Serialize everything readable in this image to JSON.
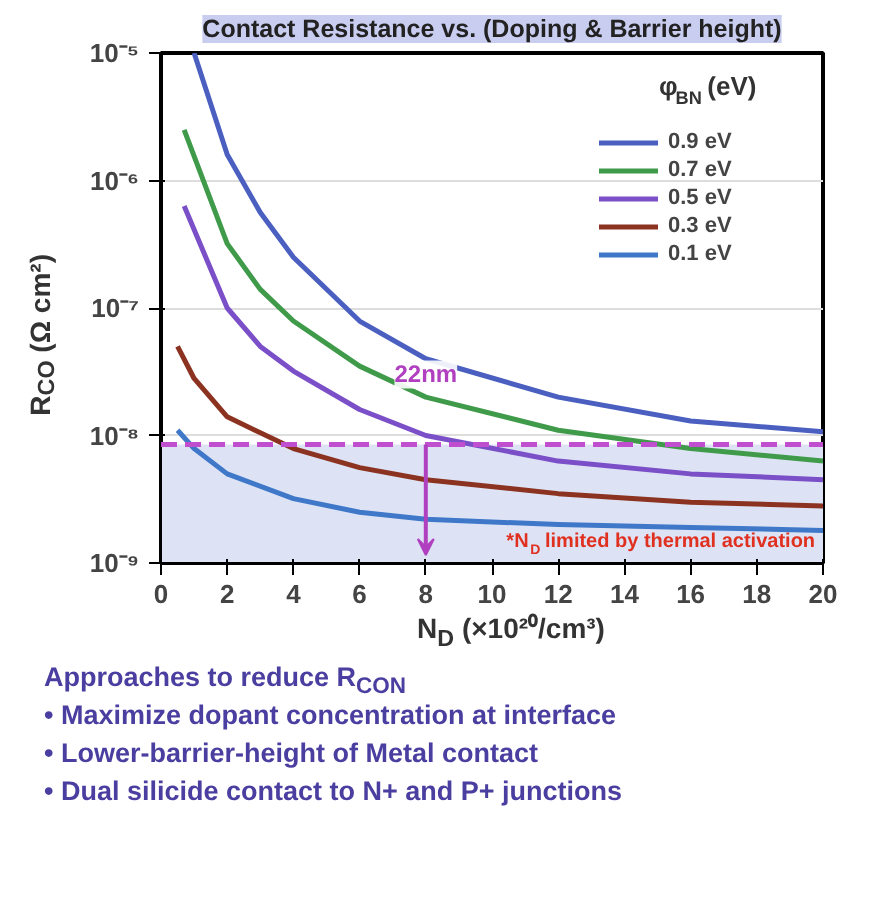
{
  "chart_data": {
    "type": "line",
    "title": "Contact Resistance vs. (Doping & Barrier height)",
    "xlabel": "N$_{D}$ (×10²⁰/cm³)",
    "ylabel": "R$_{CO}$ (Ω cm²)",
    "legend_title": "φ$_{BN}$ (eV)",
    "log": "y",
    "xlim": [
      0,
      20
    ],
    "xticks": [
      0,
      2,
      4,
      6,
      8,
      10,
      12,
      14,
      16,
      18,
      20
    ],
    "ylim": [
      1e-09,
      1e-05
    ],
    "yticks": [
      {
        "value": 1e-09,
        "label": "10⁻⁹"
      },
      {
        "value": 1e-08,
        "label": "10⁻⁸"
      },
      {
        "value": 1e-07,
        "label": "10⁻⁷"
      },
      {
        "value": 1e-06,
        "label": "10⁻⁶"
      },
      {
        "value": 1e-05,
        "label": "10⁻⁵"
      }
    ],
    "grid": "y",
    "legend": "top right",
    "line_style": "solid",
    "marker": "none",
    "series": [
      {
        "name": "0.9 eV",
        "color": "#4a5fc0",
        "x": [
          1,
          2,
          3,
          4,
          6,
          8,
          12,
          16,
          20
        ],
        "values": [
          1e-05,
          1.6e-06,
          5.6e-07,
          2.5e-07,
          7.9e-08,
          4e-08,
          2e-08,
          1.3e-08,
          1.07e-08
        ]
      },
      {
        "name": "0.7 eV",
        "color": "#3f9a4a",
        "x": [
          0.7,
          2,
          3,
          4,
          6,
          8,
          12,
          16,
          20
        ],
        "values": [
          2.5e-06,
          3.2e-07,
          1.4e-07,
          7.9e-08,
          3.5e-08,
          2e-08,
          1.1e-08,
          7.9e-09,
          6.3e-09
        ]
      },
      {
        "name": "0.5 eV",
        "color": "#7a4fc8",
        "x": [
          0.7,
          2,
          3,
          4,
          6,
          8,
          12,
          16,
          20
        ],
        "values": [
          6.3e-07,
          1e-07,
          5e-08,
          3.2e-08,
          1.6e-08,
          1e-08,
          6.3e-09,
          5e-09,
          4.5e-09
        ]
      },
      {
        "name": "0.3 eV",
        "color": "#8b3320",
        "x": [
          0.5,
          1,
          2,
          4,
          6,
          8,
          12,
          16,
          20
        ],
        "values": [
          5e-08,
          2.8e-08,
          1.4e-08,
          7.9e-09,
          5.6e-09,
          4.5e-09,
          3.5e-09,
          3e-09,
          2.8e-09
        ]
      },
      {
        "name": "0.1 eV",
        "color": "#3f78c8",
        "x": [
          0.5,
          1,
          2,
          4,
          6,
          8,
          12,
          16,
          20
        ],
        "values": [
          1.1e-08,
          7.9e-09,
          5e-09,
          3.2e-09,
          2.5e-09,
          2.2e-09,
          2e-09,
          1.9e-09,
          1.8e-09
        ]
      }
    ],
    "ref_lines": [
      {
        "axis": "y",
        "value": 8.5e-09,
        "color": "#c04fd0",
        "line_style": "dashed"
      }
    ],
    "bands": [
      {
        "axis": "y",
        "from": 1e-09,
        "to": 8.5e-09,
        "color": "#dde3f5"
      }
    ],
    "annotations": [
      "22nm",
      "*N$_{D}$ limited by thermal activation",
      "Approaches to reduce R$_{CON}$",
      "• Maximize  dopant concentration at interface",
      "• Lower-barrier-height  of Metal contact",
      "• Dual silicide  contact to N+ and P+ junctions"
    ]
  }
}
